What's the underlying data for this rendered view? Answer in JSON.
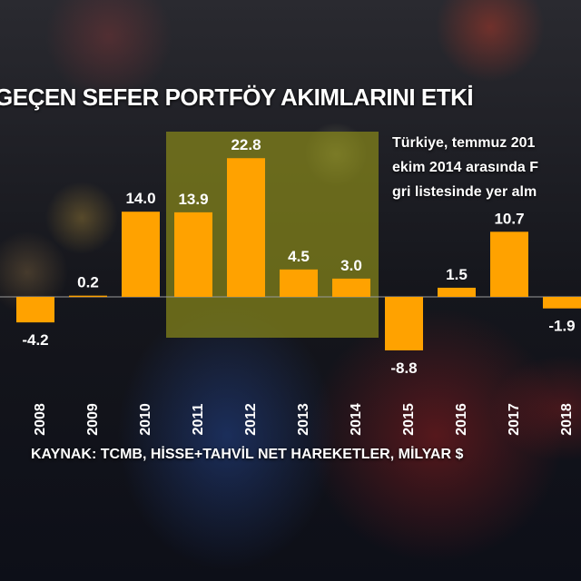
{
  "title": "GEÇEN SEFER PORTFÖY AKIMLARINI ETKİ",
  "note": [
    "Türkiye, temmuz 201",
    "ekim 2014 arasında F",
    "gri listesinde yer alm"
  ],
  "source": "KAYNAK: TCMB, HİSSE+TAHVİL NET HAREKETLER, MİLYAR $",
  "chart_data": {
    "type": "bar",
    "categories": [
      "2008",
      "2009",
      "2010",
      "2011",
      "2012",
      "2013",
      "2014",
      "2015",
      "2016",
      "2017",
      "2018"
    ],
    "values": [
      -4.2,
      0.2,
      14.0,
      13.9,
      22.8,
      4.5,
      3.0,
      -8.8,
      1.5,
      10.7,
      -1.9
    ],
    "labels": [
      "-4.2",
      "0.2",
      "14.0",
      "13.9",
      "22.8",
      "4.5",
      "3.0",
      "-8.8",
      "1.5",
      "10.7",
      "-1.9"
    ],
    "highlight": [
      "2011",
      "2014"
    ],
    "bar_color": "#FFA200",
    "highlight_color": "#8a8a1a"
  }
}
